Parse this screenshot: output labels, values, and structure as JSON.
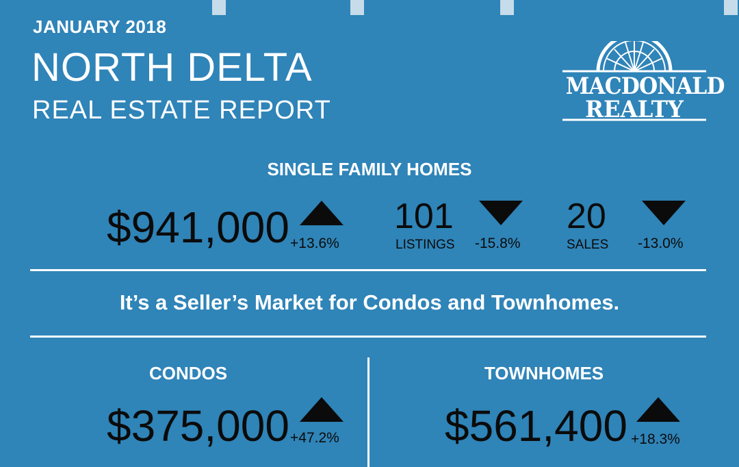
{
  "header": {
    "date": "JANUARY 2018",
    "city": "NORTH DELTA",
    "subtitle": "REAL ESTATE REPORT"
  },
  "logo": {
    "line1": "MACDONALD",
    "line2": "REALTY"
  },
  "single_family": {
    "title": "SINGLE FAMILY HOMES",
    "price": {
      "value": "$941,000",
      "change": "+13.6%",
      "direction": "up"
    },
    "listings": {
      "value": "101",
      "label": "LISTINGS",
      "change": "-15.8%",
      "direction": "down"
    },
    "sales": {
      "value": "20",
      "label": "SALES",
      "change": "-13.0%",
      "direction": "down"
    }
  },
  "market_statement": "It’s a Seller’s Market for Condos and Townhomes.",
  "condos": {
    "title": "CONDOS",
    "price": {
      "value": "$375,000",
      "change": "+47.2%",
      "direction": "up"
    }
  },
  "townhomes": {
    "title": "TOWNHOMES",
    "price": {
      "value": "$561,400",
      "change": "+18.3%",
      "direction": "up"
    }
  },
  "colors": {
    "background": "#2f84b8",
    "text_light": "#ffffff",
    "text_dark": "#0b0b0b",
    "tick": "#c6dcea"
  }
}
